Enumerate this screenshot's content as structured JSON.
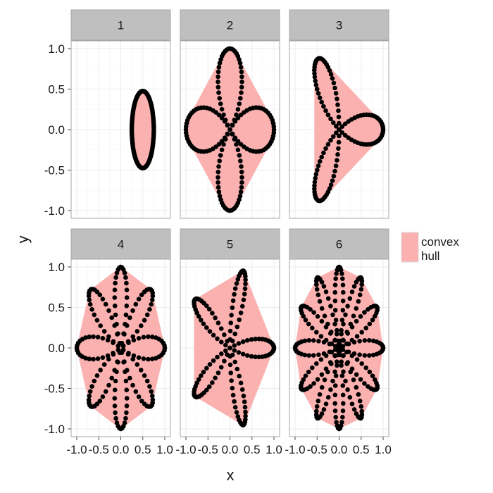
{
  "chart_data": {
    "type": "scatter",
    "facets": [
      "1",
      "2",
      "3",
      "4",
      "5",
      "6"
    ],
    "xlabel": "x",
    "ylabel": "y",
    "xlim": [
      -1.0,
      1.0
    ],
    "ylim": [
      -1.0,
      1.0
    ],
    "x_ticks": [
      "-1.0",
      "-0.5",
      "0.0",
      "0.5",
      "1.0"
    ],
    "y_ticks": [
      "-1.0",
      "-0.5",
      "0.0",
      "0.5",
      "1.0"
    ],
    "grid": true,
    "legend": {
      "title": "",
      "entries": [
        "convex\nhull"
      ],
      "position": "right"
    },
    "colors": {
      "hull_fill": "#fab1b0",
      "points": "#000000",
      "panel_bg": "#ffffff",
      "grid": "#ebebeb",
      "strip_bg": "#bfbfbf",
      "border": "#a6a6a6"
    },
    "series": [
      {
        "facet": "1",
        "curve": "circle",
        "center": [
          0.5,
          0.0
        ],
        "radius": 0.5,
        "x_scale": 0.5,
        "y_scale": 0.95,
        "points": 120
      },
      {
        "facet": "2",
        "curve": "rose",
        "k": 2,
        "points": 160
      },
      {
        "facet": "3",
        "curve": "rose",
        "k": 3,
        "points": 120
      },
      {
        "facet": "4",
        "curve": "rose",
        "k": 4,
        "points": 200
      },
      {
        "facet": "5",
        "curve": "rose",
        "k": 5,
        "points": 150
      },
      {
        "facet": "6",
        "curve": "rose",
        "k": 6,
        "points": 280
      }
    ]
  }
}
